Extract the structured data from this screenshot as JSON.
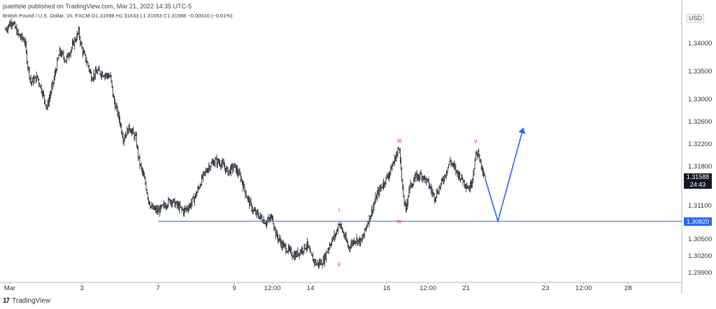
{
  "header": {
    "publisher": "jsaettele published on TradingView.com, Mar 21, 2022 14:35 UTC-5",
    "symbol": "British Pound / U.S. Dollar, 1h, FXCM",
    "ohlc": "O1.31598 H1.31633 L1.31553 C1.31588 −0.00010 (−0.01%)"
  },
  "footer": {
    "logo": "17",
    "brand": "TradingView"
  },
  "currency": "USD",
  "price_tag": {
    "price": "1.31588",
    "countdown": "24:43"
  },
  "level_tag": "1.30820",
  "colors": {
    "candle": "#131722",
    "level_line": "#2962ff",
    "projection": "#2962ff",
    "wave_label": "#e53935"
  },
  "chart_data": {
    "type": "candlestick",
    "symbol": "GBPUSD",
    "timeframe": "1h",
    "x_ticks": [
      "Mar",
      "3",
      "7",
      "9",
      "12:00",
      "14",
      "16",
      "12:00",
      "21",
      "23",
      "12:00",
      "28"
    ],
    "y_ticks": [
      1.34,
      1.335,
      1.33,
      1.326,
      1.322,
      1.318,
      1.311,
      1.305,
      1.302,
      1.299
    ],
    "y_tick_labels": [
      "1.34000",
      "1.33500",
      "1.33000",
      "1.32600",
      "1.32200",
      "1.31800",
      "1.31100",
      "1.30500",
      "1.30200",
      "1.29900"
    ],
    "ylim": [
      1.2975,
      1.3445
    ],
    "horizontal_level": 1.3082,
    "close_path": [
      [
        0,
        1.3425
      ],
      [
        2,
        1.344
      ],
      [
        4,
        1.3415
      ],
      [
        6,
        1.3405
      ],
      [
        7,
        1.336
      ],
      [
        8,
        1.333
      ],
      [
        10,
        1.334
      ],
      [
        12,
        1.3305
      ],
      [
        13,
        1.3285
      ],
      [
        15,
        1.333
      ],
      [
        17,
        1.3385
      ],
      [
        19,
        1.337
      ],
      [
        21,
        1.3395
      ],
      [
        23,
        1.342
      ],
      [
        24,
        1.339
      ],
      [
        26,
        1.336
      ],
      [
        27,
        1.334
      ],
      [
        29,
        1.335
      ],
      [
        31,
        1.3345
      ],
      [
        33,
        1.334
      ],
      [
        34,
        1.33
      ],
      [
        36,
        1.326
      ],
      [
        37,
        1.323
      ],
      [
        39,
        1.325
      ],
      [
        41,
        1.323
      ],
      [
        42,
        1.319
      ],
      [
        44,
        1.315
      ],
      [
        45,
        1.312
      ],
      [
        46,
        1.3105
      ],
      [
        48,
        1.31
      ],
      [
        50,
        1.311
      ],
      [
        52,
        1.312
      ],
      [
        54,
        1.311
      ],
      [
        56,
        1.31
      ],
      [
        58,
        1.311
      ],
      [
        60,
        1.313
      ],
      [
        62,
        1.316
      ],
      [
        64,
        1.318
      ],
      [
        66,
        1.319
      ],
      [
        68,
        1.3185
      ],
      [
        70,
        1.317
      ],
      [
        72,
        1.318
      ],
      [
        74,
        1.316
      ],
      [
        76,
        1.3125
      ],
      [
        78,
        1.31
      ],
      [
        80,
        1.309
      ],
      [
        82,
        1.308
      ],
      [
        84,
        1.309
      ],
      [
        85,
        1.306
      ],
      [
        87,
        1.304
      ],
      [
        89,
        1.303
      ],
      [
        91,
        1.302
      ],
      [
        93,
        1.303
      ],
      [
        95,
        1.304
      ],
      [
        96,
        1.302
      ],
      [
        98,
        1.3005
      ],
      [
        100,
        1.301
      ],
      [
        102,
        1.304
      ],
      [
        104,
        1.306
      ],
      [
        105,
        1.308
      ],
      [
        107,
        1.305
      ],
      [
        108,
        1.3035
      ],
      [
        110,
        1.305
      ],
      [
        112,
        1.3045
      ],
      [
        114,
        1.308
      ],
      [
        115,
        1.3095
      ],
      [
        117,
        1.313
      ],
      [
        119,
        1.315
      ],
      [
        121,
        1.317
      ],
      [
        123,
        1.32
      ],
      [
        124,
        1.3215
      ],
      [
        125,
        1.3135
      ],
      [
        126,
        1.31
      ],
      [
        127,
        1.314
      ],
      [
        129,
        1.316
      ],
      [
        131,
        1.3165
      ],
      [
        133,
        1.315
      ],
      [
        135,
        1.3125
      ],
      [
        136,
        1.3135
      ],
      [
        138,
        1.316
      ],
      [
        140,
        1.319
      ],
      [
        142,
        1.317
      ],
      [
        144,
        1.3155
      ],
      [
        146,
        1.314
      ],
      [
        147,
        1.316
      ],
      [
        148,
        1.32
      ],
      [
        149,
        1.3205
      ],
      [
        150,
        1.317
      ],
      [
        151,
        1.3159
      ]
    ],
    "n_bars": 152,
    "x_tick_bars": [
      0,
      24,
      48,
      72,
      84,
      96,
      120,
      133,
      145,
      170,
      182,
      196
    ],
    "wave_labels": [
      {
        "text": "i",
        "bar": 105,
        "price": 1.3099
      },
      {
        "text": "ii",
        "bar": 105,
        "price": 1.3001
      },
      {
        "text": "iii",
        "bar": 124,
        "price": 1.3222
      },
      {
        "text": "iv",
        "bar": 124,
        "price": 1.3078
      },
      {
        "text": "v",
        "bar": 148,
        "price": 1.3222
      }
    ],
    "projection": [
      [
        151,
        1.3158
      ],
      [
        155,
        1.3082
      ],
      [
        163,
        1.3249
      ]
    ]
  }
}
